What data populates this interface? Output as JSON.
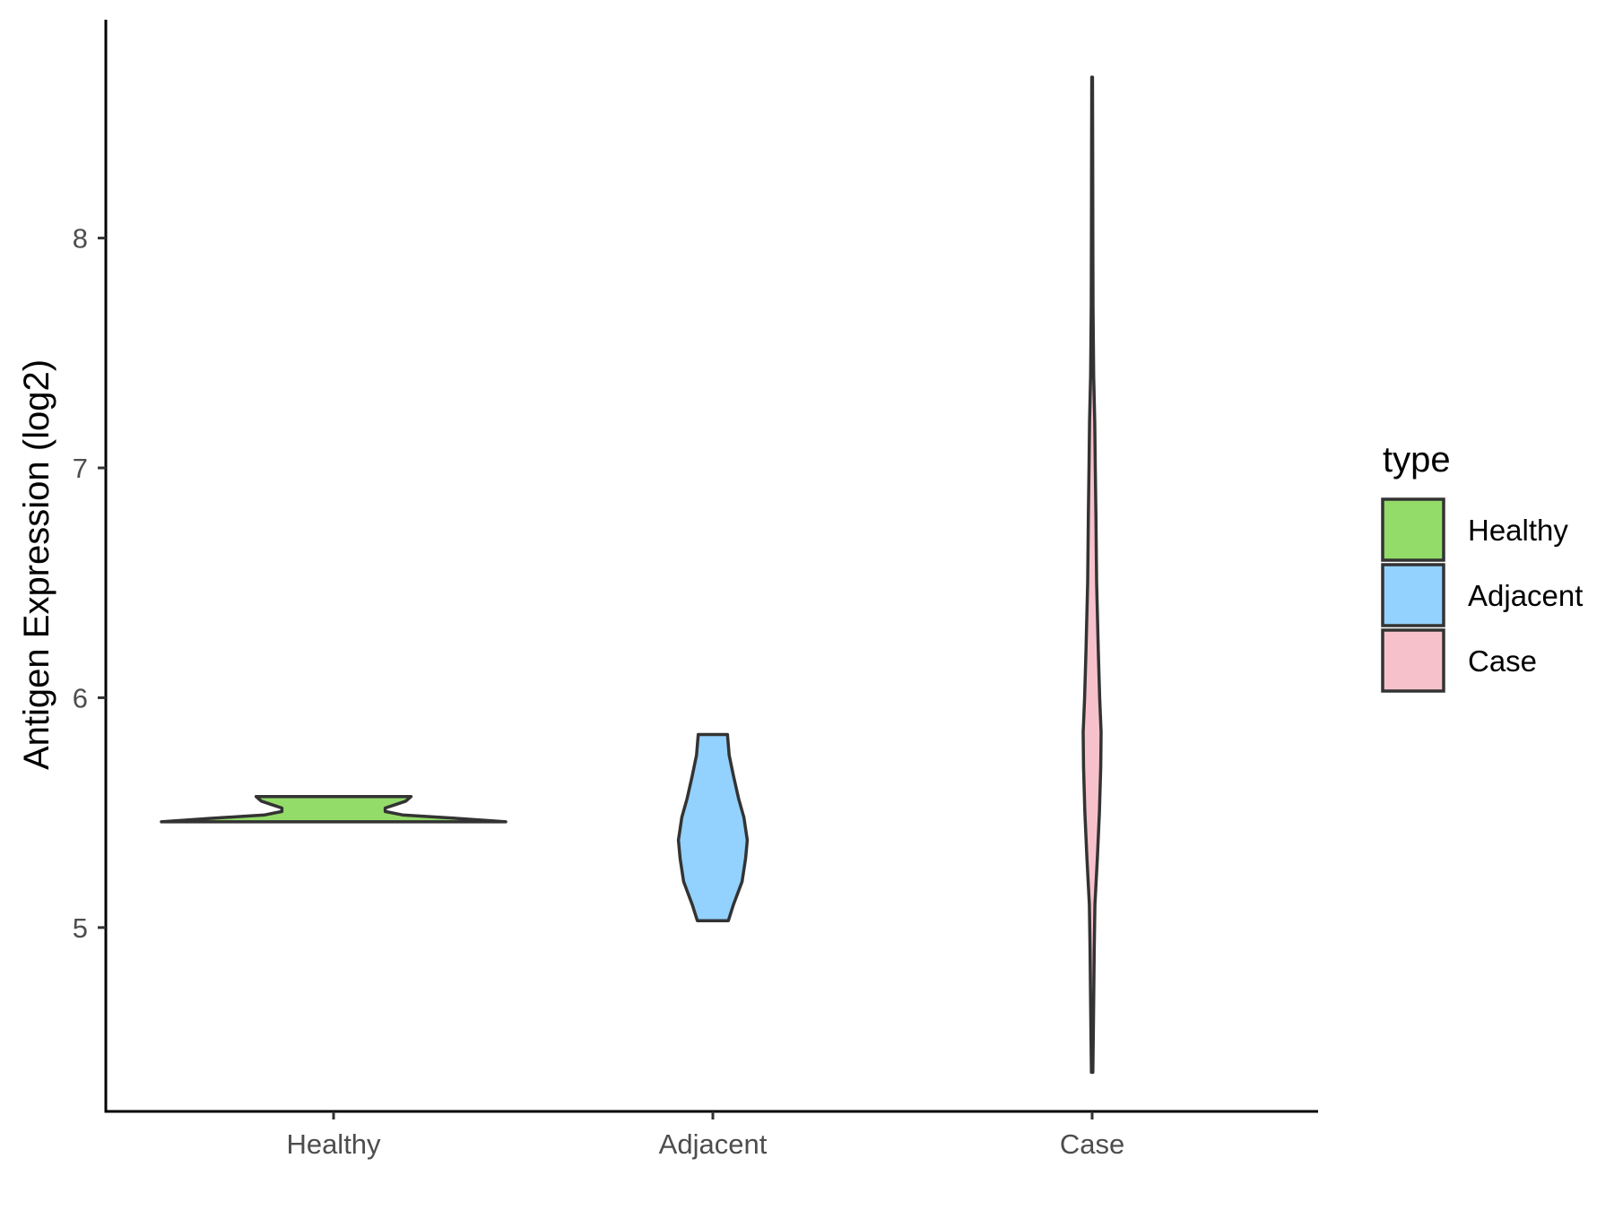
{
  "chart_data": {
    "type": "violin",
    "ylabel": "Antigen Expression (log2)",
    "xlabel": "",
    "categories": [
      "Healthy",
      "Adjacent",
      "Case"
    ],
    "ylim": [
      4.2,
      8.95
    ],
    "yticks": [
      "5",
      "6",
      "7",
      "8"
    ],
    "legend": {
      "title": "type",
      "position": "right",
      "entries": [
        "Healthy",
        "Adjacent",
        "Case"
      ]
    },
    "colors": {
      "Healthy": "#93dc6a",
      "Adjacent": "#93d1fe",
      "Case": "#f7c1cb",
      "outline": "#333333",
      "axis": "#000000"
    },
    "series": [
      {
        "name": "Healthy",
        "min": 5.46,
        "max": 5.57,
        "density": [
          [
            5.46,
            1.0
          ],
          [
            5.475,
            0.72
          ],
          [
            5.49,
            0.4
          ],
          [
            5.505,
            0.3
          ],
          [
            5.52,
            0.3
          ],
          [
            5.535,
            0.36
          ],
          [
            5.55,
            0.42
          ],
          [
            5.57,
            0.45
          ]
        ]
      },
      {
        "name": "Adjacent",
        "min": 5.03,
        "max": 5.84,
        "density": [
          [
            5.03,
            0.09
          ],
          [
            5.1,
            0.12
          ],
          [
            5.2,
            0.17
          ],
          [
            5.3,
            0.19
          ],
          [
            5.38,
            0.2
          ],
          [
            5.48,
            0.18
          ],
          [
            5.56,
            0.15
          ],
          [
            5.66,
            0.12
          ],
          [
            5.75,
            0.095
          ],
          [
            5.84,
            0.085
          ]
        ]
      },
      {
        "name": "Case",
        "min": 4.37,
        "max": 8.7,
        "density": [
          [
            4.37,
            0.004
          ],
          [
            4.6,
            0.008
          ],
          [
            4.9,
            0.012
          ],
          [
            5.1,
            0.016
          ],
          [
            5.3,
            0.03
          ],
          [
            5.5,
            0.042
          ],
          [
            5.7,
            0.05
          ],
          [
            5.85,
            0.052
          ],
          [
            6.0,
            0.044
          ],
          [
            6.2,
            0.036
          ],
          [
            6.5,
            0.026
          ],
          [
            6.8,
            0.022
          ],
          [
            7.0,
            0.018
          ],
          [
            7.2,
            0.015
          ],
          [
            7.4,
            0.009
          ],
          [
            7.7,
            0.005
          ],
          [
            8.0,
            0.004
          ],
          [
            8.4,
            0.003
          ],
          [
            8.7,
            0.002
          ]
        ]
      }
    ]
  }
}
